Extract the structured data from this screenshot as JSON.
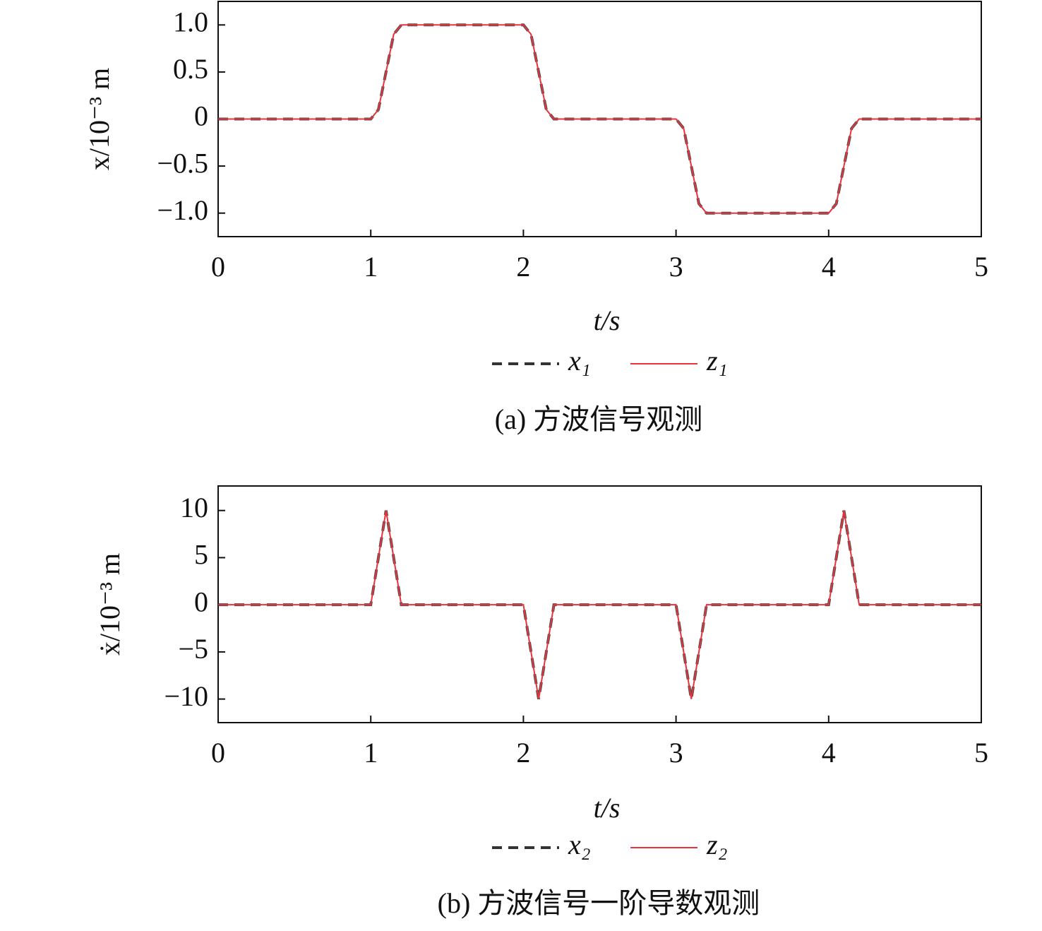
{
  "chart_data": [
    {
      "type": "line",
      "caption": "(a) 方波信号观测",
      "xlabel": "t/s",
      "ylabel": "x/10⁻³ m",
      "x": [
        0,
        1,
        1.05,
        1.1,
        1.15,
        1.2,
        2,
        2.05,
        2.1,
        2.15,
        2.2,
        3,
        3.05,
        3.1,
        3.15,
        3.2,
        4,
        4.05,
        4.1,
        4.15,
        4.2,
        5
      ],
      "series": [
        {
          "name": "x₁",
          "color": "#333333",
          "linestyle": "dashed",
          "values": [
            0,
            0,
            0.1,
            0.5,
            0.9,
            1,
            1,
            0.9,
            0.5,
            0.1,
            0,
            0,
            -0.1,
            -0.5,
            -0.9,
            -1,
            -1,
            -0.9,
            -0.5,
            -0.1,
            0,
            0
          ]
        },
        {
          "name": "z₁",
          "color": "#e8323c",
          "linestyle": "solid",
          "values": [
            0,
            0,
            0.1,
            0.5,
            0.9,
            1,
            1,
            0.9,
            0.5,
            0.1,
            0,
            0,
            -0.1,
            -0.5,
            -0.9,
            -1,
            -1,
            -0.9,
            -0.5,
            -0.1,
            0,
            0
          ]
        }
      ],
      "xlim": [
        0,
        5
      ],
      "xticks": [
        0,
        1,
        2,
        3,
        4,
        5
      ],
      "ylim": [
        -1.25,
        1.25
      ],
      "yticks": [
        {
          "value": -1,
          "label": "−1.0"
        },
        {
          "value": -0.5,
          "label": "−0.5"
        },
        0,
        0.5,
        {
          "value": 1,
          "label": "1.0"
        }
      ]
    },
    {
      "type": "line",
      "caption": "(b) 方波信号一阶导数观测",
      "xlabel": "t/s",
      "ylabel": "ẋ/10⁻³ m",
      "x": [
        0,
        1,
        1.1,
        1.2,
        2,
        2.1,
        2.2,
        3,
        3.1,
        3.2,
        4,
        4.1,
        4.2,
        5
      ],
      "series": [
        {
          "name": "x₂",
          "color": "#333333",
          "linestyle": "dashed",
          "values": [
            0,
            0,
            10,
            0,
            0,
            -10,
            0,
            0,
            -10,
            0,
            0,
            10,
            0,
            0
          ]
        },
        {
          "name": "z₂",
          "color": "#e8323c",
          "linestyle": "solid",
          "values": [
            0,
            0,
            10,
            0,
            0,
            -10,
            0,
            0,
            -10,
            0,
            0,
            10,
            0,
            0
          ]
        }
      ],
      "xlim": [
        0,
        5
      ],
      "xticks": [
        0,
        1,
        2,
        3,
        4,
        5
      ],
      "ylim": [
        -12.5,
        12.6
      ],
      "yticks": [
        {
          "value": -10,
          "label": "−10"
        },
        {
          "value": -5,
          "label": "−5"
        },
        0,
        5,
        10
      ]
    }
  ]
}
